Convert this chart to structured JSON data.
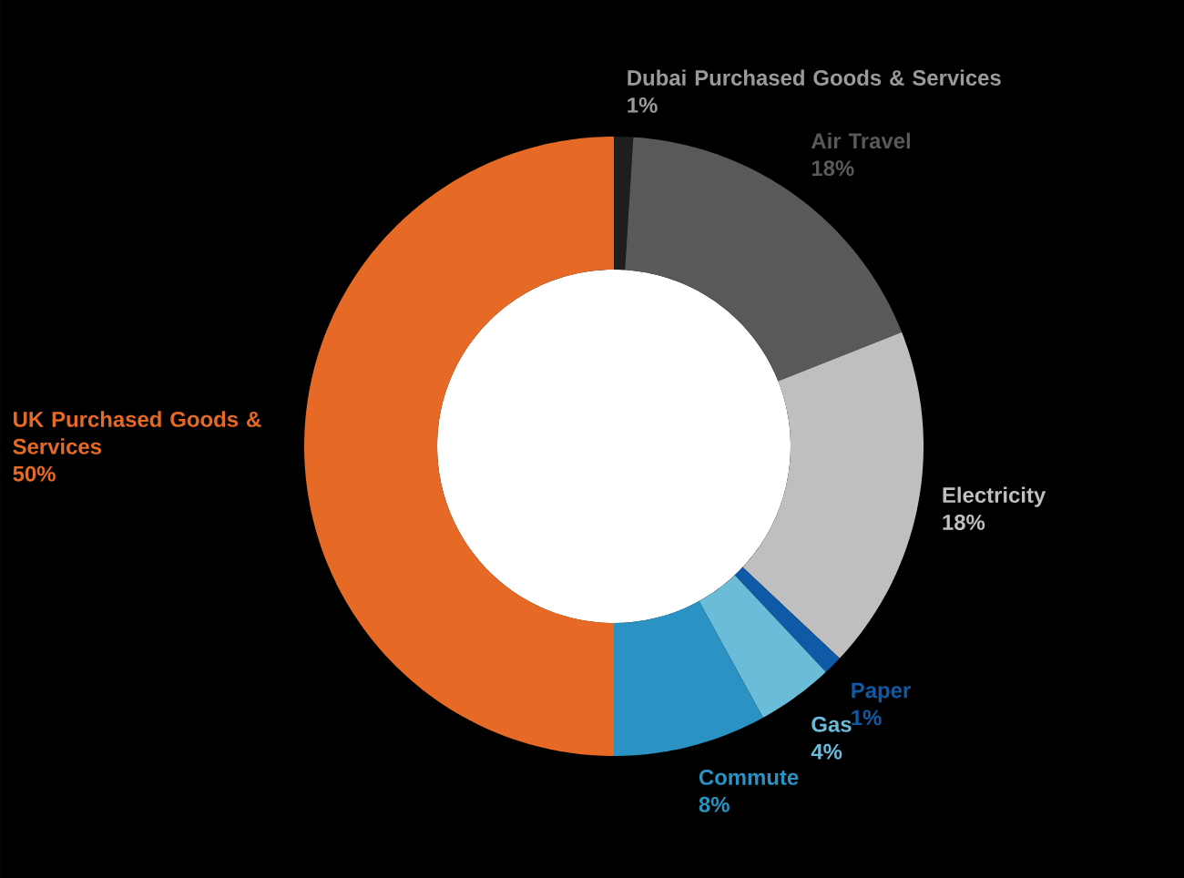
{
  "chart_data": {
    "type": "donut",
    "categories": [
      "Dubai Purchased Goods & Services",
      "Air Travel",
      "Electricity",
      "Paper",
      "Gas",
      "Commute",
      "UK Purchased Goods & Services"
    ],
    "values": [
      1,
      18,
      18,
      1,
      4,
      8,
      50
    ],
    "value_labels": [
      "1%",
      "18%",
      "18%",
      "1%",
      "4%",
      "8%",
      "50%"
    ],
    "colors": [
      "#1e1e1e",
      "#595959",
      "#bfbfbf",
      "#0f5aa6",
      "#6bbcd8",
      "#2b93c4",
      "#e66a25"
    ]
  }
}
